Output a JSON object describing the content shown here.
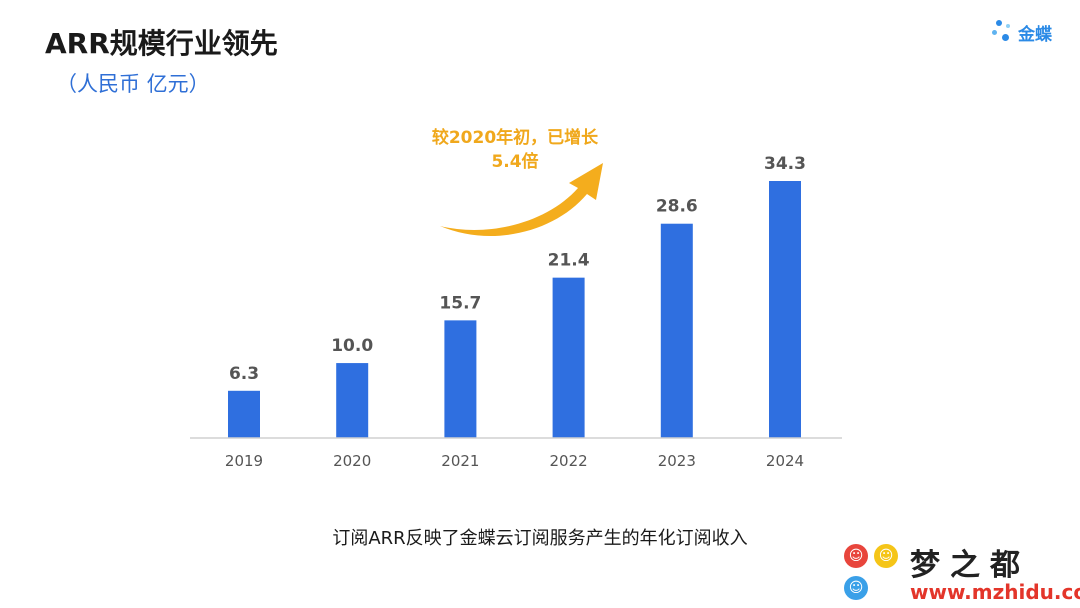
{
  "header": {
    "title": "ARR规模行业领先",
    "subtitle": "（人民币 亿元）"
  },
  "logo": {
    "text": "金蝶",
    "color": "#2b8ae6"
  },
  "chart_data": {
    "type": "bar",
    "categories": [
      "2019",
      "2020",
      "2021",
      "2022",
      "2023",
      "2024"
    ],
    "values": [
      6.3,
      10.0,
      15.7,
      21.4,
      28.6,
      34.3
    ],
    "value_labels": [
      "6.3",
      "10.0",
      "15.7",
      "21.4",
      "28.6",
      "34.3"
    ],
    "ylim": [
      0,
      34.3
    ],
    "grid": false,
    "bar_color": "#2f6fe0",
    "annotation": {
      "line1": "较2020年初，已增长",
      "line2": "5.4倍",
      "color": "#f0a81c",
      "arrow_icon": "curved-up-arrow-icon"
    }
  },
  "caption": "订阅ARR反映了金蝶云订阅服务产生的年化订阅收入",
  "watermark": {
    "title": "梦之都",
    "url": "www.mzhidu.com"
  }
}
